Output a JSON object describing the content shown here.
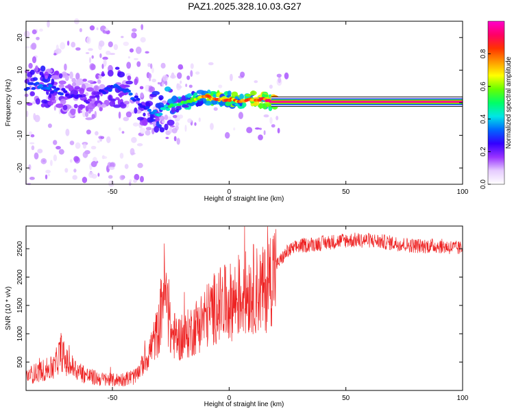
{
  "page_title": "PAZ1.2025.328.10.03.G27",
  "chart_data": [
    {
      "type": "heatmap",
      "title": "PAZ1.2025.328.10.03.G27",
      "xlabel": "Height of straight line (km)",
      "ylabel": "Frequency (Hz)",
      "xlim": [
        -87,
        100
      ],
      "ylim": [
        -25,
        25
      ],
      "xticks": [
        -50,
        0,
        50,
        100
      ],
      "yticks": [
        -20,
        -10,
        0,
        10,
        20
      ],
      "xtick_labels": [
        "-50",
        "0",
        "50",
        "100"
      ],
      "ytick_labels": [
        "-20",
        "-10",
        "0",
        "10",
        "20"
      ],
      "colorbar": {
        "label": "Normalized spectral amplitude",
        "range": [
          0,
          1
        ],
        "ticks": [
          0.0,
          0.2,
          0.4,
          0.6,
          0.8
        ],
        "tick_labels": [
          "0.0",
          "0.2",
          "0.4",
          "0.6",
          "0.8"
        ],
        "colors": [
          "#ffffff",
          "#e6ccff",
          "#9933ff",
          "#3300ff",
          "#0066ff",
          "#00e6e6",
          "#00ff66",
          "#66ff00",
          "#ffff00",
          "#ff9900",
          "#ff3300",
          "#ff0066",
          "#ff00cc"
        ]
      },
      "ridge": {
        "description": "dominant frequency ridge vs height",
        "x": [
          -87,
          -80,
          -75,
          -70,
          -65,
          -60,
          -55,
          -50,
          -45,
          -40,
          -35,
          -30,
          -25,
          -20,
          -15,
          -10,
          -5,
          0,
          5,
          10,
          15,
          18,
          100
        ],
        "y": [
          5,
          5,
          4,
          3,
          2,
          1,
          3,
          5,
          4,
          1,
          -2,
          -3,
          -1,
          0,
          1,
          2,
          1,
          1,
          0.5,
          1,
          1,
          0.3,
          0.3
        ],
        "amplitude": [
          0.3,
          0.35,
          0.3,
          0.25,
          0.25,
          0.2,
          0.25,
          0.3,
          0.35,
          0.3,
          0.3,
          0.4,
          0.5,
          0.55,
          0.65,
          0.75,
          0.8,
          0.8,
          0.75,
          0.8,
          0.85,
          0.95,
          0.98
        ]
      }
    },
    {
      "type": "line",
      "xlabel": "Height of straight line (km)",
      "ylabel": "SNR (10 * v/v)",
      "xlim": [
        -87,
        100
      ],
      "ylim": [
        0,
        2900
      ],
      "xticks": [
        -50,
        0,
        50,
        100
      ],
      "yticks": [
        500,
        1000,
        1500,
        2000,
        2500
      ],
      "xtick_labels": [
        "-50",
        "0",
        "50",
        "100"
      ],
      "ytick_labels": [
        "500",
        "1000",
        "1500",
        "2000",
        "2500"
      ],
      "color": "#ee2222",
      "series": [
        {
          "name": "SNR",
          "x": [
            -87,
            -80,
            -75,
            -72,
            -70,
            -65,
            -60,
            -55,
            -50,
            -45,
            -40,
            -35,
            -30,
            -28,
            -25,
            -20,
            -15,
            -10,
            -5,
            0,
            5,
            10,
            15,
            20,
            25,
            30,
            40,
            50,
            60,
            70,
            80,
            90,
            100
          ],
          "values": [
            250,
            350,
            400,
            700,
            500,
            350,
            250,
            200,
            180,
            200,
            250,
            600,
            1100,
            1900,
            1000,
            900,
            1100,
            1300,
            1500,
            1550,
            1650,
            1800,
            1750,
            2200,
            2450,
            2550,
            2600,
            2650,
            2650,
            2600,
            2550,
            2550,
            2500
          ]
        }
      ]
    }
  ]
}
